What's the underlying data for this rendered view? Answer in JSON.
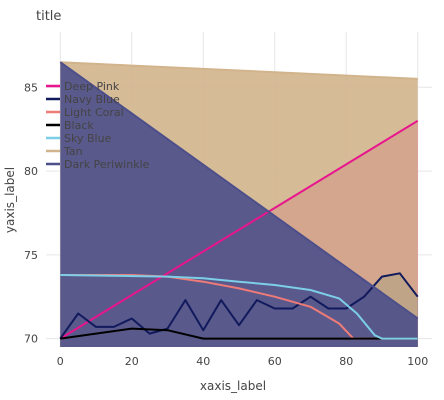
{
  "chart_data": {
    "type": "line",
    "title": "title",
    "xlabel": "xaxis_label",
    "ylabel": "yaxis_label",
    "xlim": [
      -4,
      104
    ],
    "ylim": [
      69.5,
      88.3
    ],
    "x_ticks": [
      0,
      20,
      40,
      60,
      80,
      100
    ],
    "y_ticks": [
      70,
      75,
      80,
      85
    ],
    "grid": true,
    "legend_position": "left, inside plot",
    "series": [
      {
        "name": "Deep Pink",
        "color": "#e8158e",
        "points": [
          [
            0,
            70.0
          ],
          [
            100,
            83.0
          ]
        ]
      },
      {
        "name": "Navy Blue",
        "color": "#111a5c",
        "points": [
          [
            0,
            70.0
          ],
          [
            5,
            71.5
          ],
          [
            10,
            70.7
          ],
          [
            15,
            70.7
          ],
          [
            20,
            71.2
          ],
          [
            25,
            70.3
          ],
          [
            30,
            70.6
          ],
          [
            35,
            72.3
          ],
          [
            40,
            70.5
          ],
          [
            45,
            72.3
          ],
          [
            50,
            70.8
          ],
          [
            55,
            72.3
          ],
          [
            60,
            71.8
          ],
          [
            65,
            71.8
          ],
          [
            70,
            72.5
          ],
          [
            75,
            71.8
          ],
          [
            80,
            71.8
          ],
          [
            85,
            72.5
          ],
          [
            90,
            73.7
          ],
          [
            95,
            73.9
          ],
          [
            100,
            72.5
          ]
        ]
      },
      {
        "name": "Light Coral",
        "color": "#ef7b77",
        "points": [
          [
            0,
            73.8
          ],
          [
            20,
            73.8
          ],
          [
            30,
            73.7
          ],
          [
            40,
            73.4
          ],
          [
            50,
            73.0
          ],
          [
            60,
            72.5
          ],
          [
            70,
            71.9
          ],
          [
            78,
            70.9
          ],
          [
            82,
            70.0
          ],
          [
            85,
            70.0
          ],
          [
            100,
            70.0
          ]
        ]
      },
      {
        "name": "Black",
        "color": "#000000",
        "points": [
          [
            0,
            70.0
          ],
          [
            20,
            70.6
          ],
          [
            30,
            70.5
          ],
          [
            40,
            70.0
          ],
          [
            100,
            70.0
          ]
        ]
      },
      {
        "name": "Sky Blue",
        "color": "#7ccfe6",
        "points": [
          [
            0,
            73.8
          ],
          [
            30,
            73.7
          ],
          [
            40,
            73.6
          ],
          [
            50,
            73.4
          ],
          [
            60,
            73.2
          ],
          [
            70,
            72.9
          ],
          [
            78,
            72.4
          ],
          [
            83,
            71.5
          ],
          [
            88,
            70.2
          ],
          [
            90,
            70.0
          ],
          [
            100,
            70.0
          ]
        ]
      },
      {
        "name": "Tan",
        "color": "#d2b48c",
        "points": [
          [
            0,
            86.5
          ],
          [
            100,
            85.5
          ]
        ]
      },
      {
        "name": "Dark Periwinkle",
        "color": "#4d4f8b",
        "points": [
          [
            0,
            86.5
          ],
          [
            100,
            71.2
          ]
        ]
      }
    ]
  }
}
